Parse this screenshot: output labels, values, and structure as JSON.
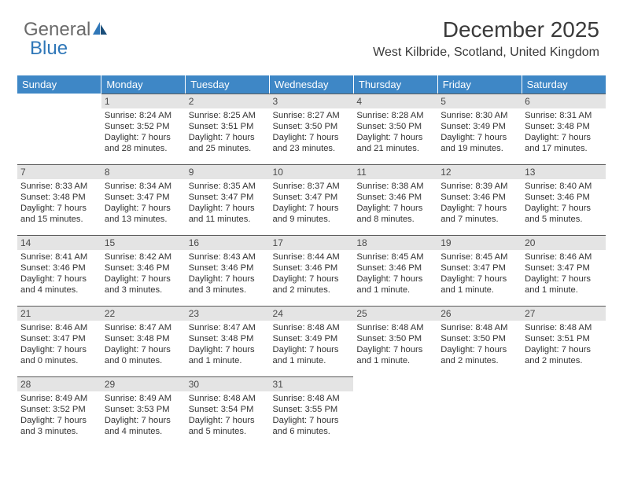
{
  "logo": {
    "text_general": "General",
    "text_blue": "Blue"
  },
  "header": {
    "month_title": "December 2025",
    "location": "West Kilbride, Scotland, United Kingdom"
  },
  "theme": {
    "header_bg": "#3e87c6",
    "header_text": "#ffffff",
    "daybar_bg": "#e4e4e4",
    "daybar_border": "#5a5a5a",
    "body_text": "#333333",
    "logo_gray": "#6a6a6a",
    "logo_blue": "#2f77b8",
    "page_bg": "#ffffff"
  },
  "calendar": {
    "day_headers": [
      "Sunday",
      "Monday",
      "Tuesday",
      "Wednesday",
      "Thursday",
      "Friday",
      "Saturday"
    ],
    "first_weekday_index": 1,
    "days": [
      {
        "n": 1,
        "sunrise": "8:24 AM",
        "sunset": "3:52 PM",
        "daylight": "7 hours and 28 minutes."
      },
      {
        "n": 2,
        "sunrise": "8:25 AM",
        "sunset": "3:51 PM",
        "daylight": "7 hours and 25 minutes."
      },
      {
        "n": 3,
        "sunrise": "8:27 AM",
        "sunset": "3:50 PM",
        "daylight": "7 hours and 23 minutes."
      },
      {
        "n": 4,
        "sunrise": "8:28 AM",
        "sunset": "3:50 PM",
        "daylight": "7 hours and 21 minutes."
      },
      {
        "n": 5,
        "sunrise": "8:30 AM",
        "sunset": "3:49 PM",
        "daylight": "7 hours and 19 minutes."
      },
      {
        "n": 6,
        "sunrise": "8:31 AM",
        "sunset": "3:48 PM",
        "daylight": "7 hours and 17 minutes."
      },
      {
        "n": 7,
        "sunrise": "8:33 AM",
        "sunset": "3:48 PM",
        "daylight": "7 hours and 15 minutes."
      },
      {
        "n": 8,
        "sunrise": "8:34 AM",
        "sunset": "3:47 PM",
        "daylight": "7 hours and 13 minutes."
      },
      {
        "n": 9,
        "sunrise": "8:35 AM",
        "sunset": "3:47 PM",
        "daylight": "7 hours and 11 minutes."
      },
      {
        "n": 10,
        "sunrise": "8:37 AM",
        "sunset": "3:47 PM",
        "daylight": "7 hours and 9 minutes."
      },
      {
        "n": 11,
        "sunrise": "8:38 AM",
        "sunset": "3:46 PM",
        "daylight": "7 hours and 8 minutes."
      },
      {
        "n": 12,
        "sunrise": "8:39 AM",
        "sunset": "3:46 PM",
        "daylight": "7 hours and 7 minutes."
      },
      {
        "n": 13,
        "sunrise": "8:40 AM",
        "sunset": "3:46 PM",
        "daylight": "7 hours and 5 minutes."
      },
      {
        "n": 14,
        "sunrise": "8:41 AM",
        "sunset": "3:46 PM",
        "daylight": "7 hours and 4 minutes."
      },
      {
        "n": 15,
        "sunrise": "8:42 AM",
        "sunset": "3:46 PM",
        "daylight": "7 hours and 3 minutes."
      },
      {
        "n": 16,
        "sunrise": "8:43 AM",
        "sunset": "3:46 PM",
        "daylight": "7 hours and 3 minutes."
      },
      {
        "n": 17,
        "sunrise": "8:44 AM",
        "sunset": "3:46 PM",
        "daylight": "7 hours and 2 minutes."
      },
      {
        "n": 18,
        "sunrise": "8:45 AM",
        "sunset": "3:46 PM",
        "daylight": "7 hours and 1 minute."
      },
      {
        "n": 19,
        "sunrise": "8:45 AM",
        "sunset": "3:47 PM",
        "daylight": "7 hours and 1 minute."
      },
      {
        "n": 20,
        "sunrise": "8:46 AM",
        "sunset": "3:47 PM",
        "daylight": "7 hours and 1 minute."
      },
      {
        "n": 21,
        "sunrise": "8:46 AM",
        "sunset": "3:47 PM",
        "daylight": "7 hours and 0 minutes."
      },
      {
        "n": 22,
        "sunrise": "8:47 AM",
        "sunset": "3:48 PM",
        "daylight": "7 hours and 0 minutes."
      },
      {
        "n": 23,
        "sunrise": "8:47 AM",
        "sunset": "3:48 PM",
        "daylight": "7 hours and 1 minute."
      },
      {
        "n": 24,
        "sunrise": "8:48 AM",
        "sunset": "3:49 PM",
        "daylight": "7 hours and 1 minute."
      },
      {
        "n": 25,
        "sunrise": "8:48 AM",
        "sunset": "3:50 PM",
        "daylight": "7 hours and 1 minute."
      },
      {
        "n": 26,
        "sunrise": "8:48 AM",
        "sunset": "3:50 PM",
        "daylight": "7 hours and 2 minutes."
      },
      {
        "n": 27,
        "sunrise": "8:48 AM",
        "sunset": "3:51 PM",
        "daylight": "7 hours and 2 minutes."
      },
      {
        "n": 28,
        "sunrise": "8:49 AM",
        "sunset": "3:52 PM",
        "daylight": "7 hours and 3 minutes."
      },
      {
        "n": 29,
        "sunrise": "8:49 AM",
        "sunset": "3:53 PM",
        "daylight": "7 hours and 4 minutes."
      },
      {
        "n": 30,
        "sunrise": "8:48 AM",
        "sunset": "3:54 PM",
        "daylight": "7 hours and 5 minutes."
      },
      {
        "n": 31,
        "sunrise": "8:48 AM",
        "sunset": "3:55 PM",
        "daylight": "7 hours and 6 minutes."
      }
    ],
    "labels": {
      "sunrise": "Sunrise:",
      "sunset": "Sunset:",
      "daylight": "Daylight:"
    }
  }
}
